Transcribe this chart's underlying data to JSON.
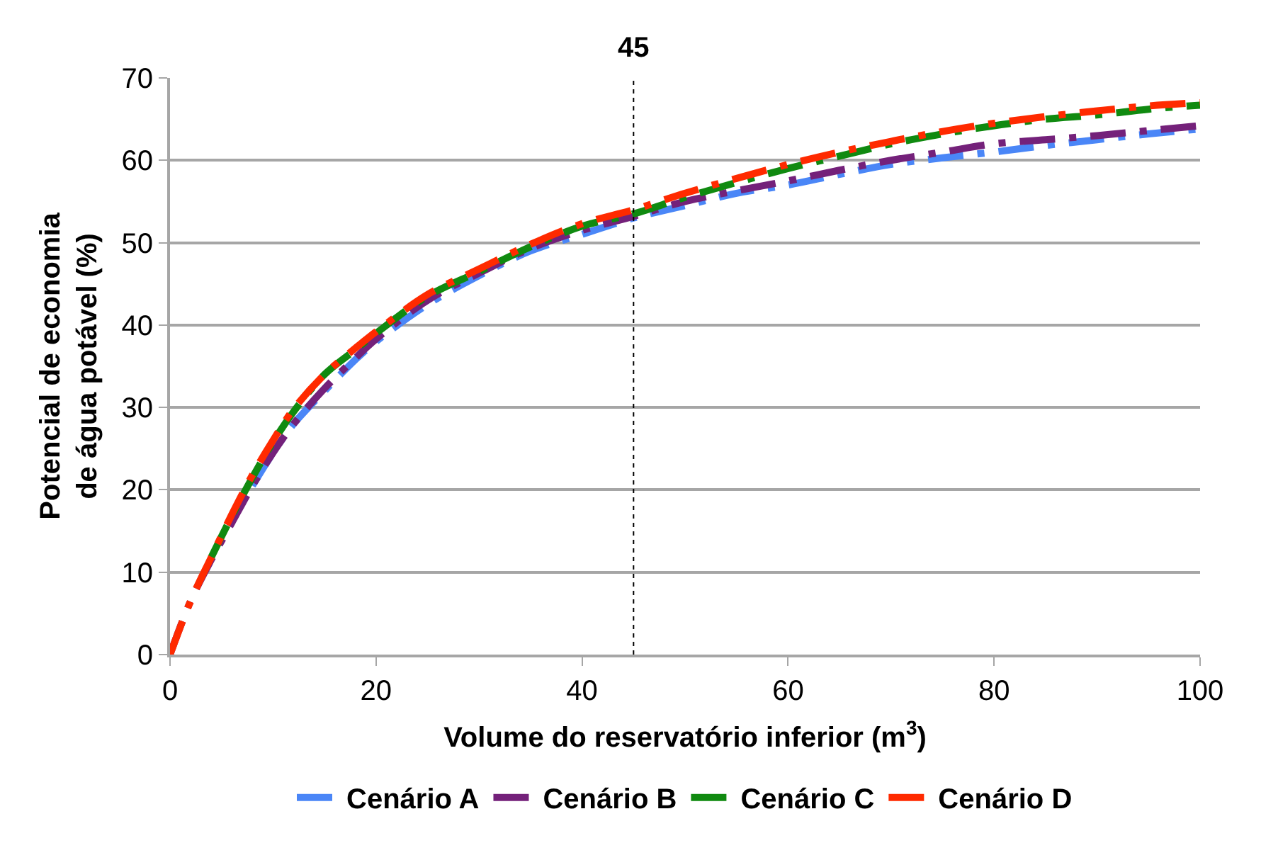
{
  "chart_data": {
    "type": "line",
    "xlabel": "Volume do reservatório inferior (m$^{3}$)",
    "ylabel": "Potencial de economia\nde água potável (%)",
    "x": [
      0,
      2,
      4,
      6,
      8,
      10,
      12,
      15,
      18,
      20,
      25,
      30,
      35,
      40,
      45,
      50,
      55,
      60,
      65,
      70,
      75,
      80,
      85,
      90,
      95,
      100
    ],
    "series": [
      {
        "name": "Cenário A",
        "color": "#4a86f7",
        "values": [
          null,
          null,
          null,
          null,
          20.5,
          24.5,
          28,
          32,
          35.8,
          38,
          42.5,
          46,
          49,
          51,
          53,
          54.5,
          56,
          57,
          58.3,
          59.5,
          60.3,
          61,
          61.8,
          62.5,
          63.2,
          63.8
        ]
      },
      {
        "name": "Cenário B",
        "color": "#74217a",
        "values": [
          0,
          6.5,
          11.5,
          16,
          20.5,
          24.5,
          28,
          32.3,
          36,
          38.3,
          43,
          46.3,
          49.3,
          51.5,
          53.2,
          55,
          56.3,
          57.5,
          58.8,
          60,
          61,
          62,
          62.5,
          63,
          63.6,
          64.2
        ]
      },
      {
        "name": "Cenário C",
        "color": "#108a10",
        "values": [
          null,
          null,
          11.8,
          16.8,
          21.5,
          25.8,
          29.5,
          34,
          37,
          39,
          43.5,
          46.5,
          49.5,
          52,
          53.5,
          55.5,
          57.3,
          59,
          60.5,
          62,
          63.2,
          64.2,
          65,
          65.5,
          66.2,
          66.7
        ]
      },
      {
        "name": "Cenário D",
        "color": "#ff2a00",
        "values": [
          0,
          6.5,
          11.8,
          17,
          21.8,
          26,
          29.8,
          34,
          37.2,
          39.2,
          43.7,
          46.8,
          49.8,
          52.3,
          54,
          56,
          57.8,
          59.5,
          61,
          62.3,
          63.5,
          64.5,
          65.3,
          66,
          66.6,
          67
        ]
      }
    ],
    "xlim": [
      0,
      100
    ],
    "xticks": [
      0,
      20,
      40,
      60,
      80,
      100
    ],
    "ylim": [
      0,
      70
    ],
    "yticks": [
      0,
      10,
      20,
      30,
      40,
      50,
      60,
      70
    ],
    "grid": "y",
    "legend": "bottom",
    "line_style": "dashed",
    "marker": "none",
    "ref_lines": [
      {
        "axis": "x",
        "value": 45,
        "label": "45",
        "color": "#000000",
        "line_style": "dotted"
      }
    ]
  }
}
